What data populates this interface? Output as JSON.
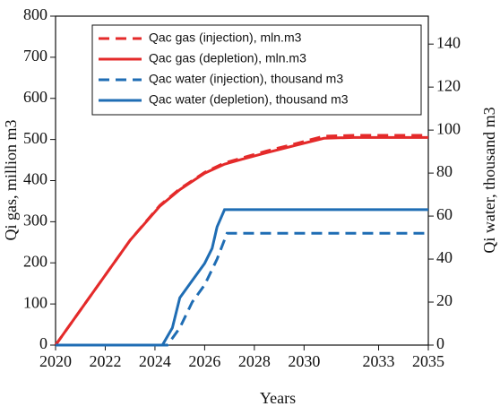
{
  "chart_data": {
    "type": "line",
    "xlabel": "Years",
    "ylabel": "Qi gas, million m3",
    "y2label": "Qi water, thousand m3",
    "xlim": [
      2020,
      2035
    ],
    "xticks": [
      2020,
      2022,
      2024,
      2026,
      2028,
      2030,
      2033,
      2035
    ],
    "ylim": [
      0,
      800
    ],
    "yticks": [
      0,
      100,
      200,
      300,
      400,
      500,
      600,
      700,
      800
    ],
    "y2lim": [
      0,
      153
    ],
    "y2ticks": [
      0,
      20,
      40,
      60,
      80,
      100,
      120,
      140
    ],
    "legend": "upper left",
    "series": [
      {
        "name": "Qac gas (injection), mln.m3",
        "color": "#e42a2a",
        "dash": true,
        "x": [
          2020,
          2021,
          2022,
          2023,
          2024.2,
          2025,
          2025.5,
          2026,
          2026.8,
          2027.5,
          2028.5,
          2029.8,
          2030.8,
          2032,
          2035
        ],
        "values": [
          0,
          85,
          170,
          255,
          340,
          380,
          400,
          420,
          443,
          455,
          472,
          492,
          508,
          510,
          510
        ]
      },
      {
        "name": "Qac gas (depletion), mln.m3",
        "color": "#e42a2a",
        "dash": false,
        "x": [
          2020,
          2021,
          2022,
          2023,
          2024.2,
          2025,
          2025.5,
          2026,
          2026.8,
          2027.5,
          2028.5,
          2029.8,
          2030.8,
          2032,
          2035
        ],
        "values": [
          0,
          85,
          170,
          255,
          338,
          378,
          398,
          418,
          440,
          452,
          468,
          488,
          503,
          505,
          505
        ]
      },
      {
        "name": "Qac water (injection), thousand m3",
        "color": "#1f6db4",
        "dash": true,
        "axis": "y2",
        "x": [
          2020,
          2024.5,
          2025,
          2025.5,
          2026,
          2026.5,
          2026.9,
          2035
        ],
        "values": [
          0,
          0,
          8,
          20,
          28,
          40,
          52,
          52
        ]
      },
      {
        "name": "Qac water (depletion), thousand m3",
        "color": "#1f6db4",
        "dash": false,
        "axis": "y2",
        "x": [
          2020,
          2024.3,
          2024.7,
          2025,
          2025.5,
          2026,
          2026.3,
          2026.5,
          2026.8,
          2035
        ],
        "values": [
          0,
          0,
          8,
          22,
          30,
          38,
          45,
          55,
          63,
          63
        ]
      }
    ]
  }
}
